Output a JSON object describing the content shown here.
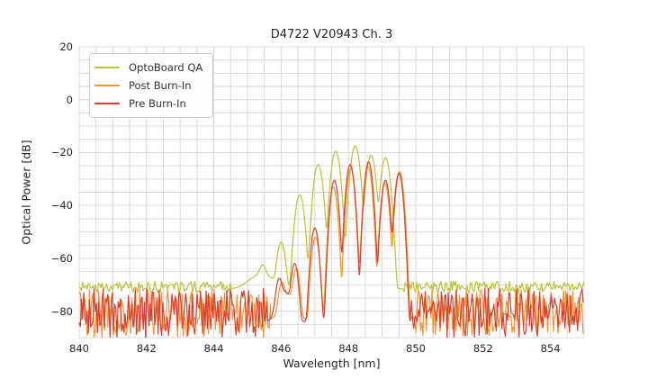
{
  "chart_data": {
    "type": "line",
    "title": "D4722 V20943 Ch. 3",
    "xlabel": "Wavelength [nm]",
    "ylabel": "Optical Power [dB]",
    "xlim": [
      840,
      855
    ],
    "ylim": [
      -90,
      20
    ],
    "xticks": {
      "values": [
        840,
        842,
        844,
        846,
        848,
        850,
        852,
        854
      ],
      "labels": [
        "840",
        "842",
        "844",
        "846",
        "848",
        "850",
        "852",
        "854"
      ]
    },
    "yticks": {
      "values": [
        20,
        0,
        -20,
        -40,
        -60,
        -80
      ],
      "labels": [
        "20",
        "0",
        "−20",
        "−40",
        "−60",
        "−80"
      ]
    },
    "grid": {
      "on": true,
      "minor_x_step": 0.5,
      "minor_y_step": 5
    },
    "legend_position": "upper-left",
    "colors": {
      "background": "#ffffff",
      "grid": "#d9d9d9",
      "text": "#262626",
      "legend_border": "#cccccc"
    },
    "series": [
      {
        "name": "OptoBoard QA",
        "color": "#bac23a",
        "line_width": 1.2,
        "seed": 11,
        "noise_floor": {
          "top_db": -68.7,
          "bottom_db": -72.9,
          "spike_chance": 0.08,
          "spike_db": 2.5
        },
        "mode_region": [
          844.55,
          849.62
        ],
        "region_floor_db": -71.5,
        "mode_width_nm": 0.1,
        "modes": [
          [
            845.42,
            -67.5,
            0.42
          ],
          [
            845.45,
            -65.0
          ],
          [
            846.0,
            -54.0
          ],
          [
            846.55,
            -36.0
          ],
          [
            847.1,
            -24.5
          ],
          [
            847.62,
            -19.5
          ],
          [
            848.2,
            -17.5
          ],
          [
            848.67,
            -21.0
          ],
          [
            849.1,
            -22.0
          ]
        ]
      },
      {
        "name": "Post Burn-In",
        "color": "#f79433",
        "line_width": 1.2,
        "seed": 23,
        "noise_floor": {
          "top_db": -71.6,
          "bottom_db": -90,
          "spike_chance": 0,
          "spike_db": 0
        },
        "mode_region": [
          845.68,
          849.87
        ],
        "region_floor_db": -83,
        "mode_width_nm": 0.085,
        "modes": [
          [
            846.2,
            -74.0,
            0.22
          ],
          [
            846.02,
            -70.0
          ],
          [
            846.45,
            -64.0
          ],
          [
            847.02,
            -52.0
          ],
          [
            847.55,
            -33.0
          ],
          [
            848.07,
            -26.0
          ],
          [
            848.58,
            -25.2
          ],
          [
            849.08,
            -31.5
          ],
          [
            849.52,
            -27.2
          ]
        ]
      },
      {
        "name": "Pre Burn-In",
        "color": "#d5402f",
        "line_width": 1.2,
        "seed": 5,
        "noise_floor": {
          "top_db": -71.4,
          "bottom_db": -90,
          "spike_chance": 0,
          "spike_db": 0
        },
        "mode_region": [
          845.6,
          849.84
        ],
        "region_floor_db": -84,
        "mode_width_nm": 0.085,
        "modes": [
          [
            846.1,
            -73.0,
            0.22
          ],
          [
            845.94,
            -68.5
          ],
          [
            846.4,
            -62.0
          ],
          [
            847.0,
            -48.5
          ],
          [
            847.58,
            -30.5
          ],
          [
            848.05,
            -24.5
          ],
          [
            848.6,
            -23.5
          ],
          [
            849.1,
            -30.5
          ],
          [
            849.5,
            -27.8
          ]
        ]
      }
    ]
  }
}
